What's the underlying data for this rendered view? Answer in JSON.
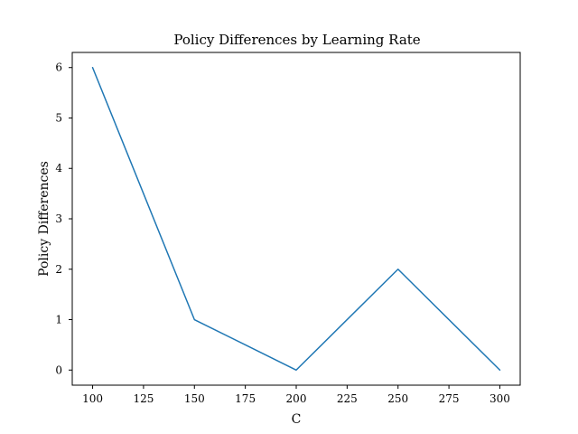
{
  "chart_data": {
    "type": "line",
    "title": "Policy Differences by Learning Rate",
    "xlabel": "C",
    "ylabel": "Policy Differences",
    "x": [
      100,
      150,
      200,
      250,
      300
    ],
    "series": [
      {
        "values": [
          6,
          1,
          0,
          2,
          0
        ],
        "color": "#1f77b4"
      }
    ],
    "xlim": [
      90,
      310
    ],
    "ylim": [
      -0.3,
      6.3
    ],
    "xticks": [
      "100",
      "125",
      "150",
      "175",
      "200",
      "225",
      "250",
      "275",
      "300"
    ],
    "yticks": [
      "0",
      "1",
      "2",
      "3",
      "4",
      "5",
      "6"
    ],
    "grid": false
  }
}
